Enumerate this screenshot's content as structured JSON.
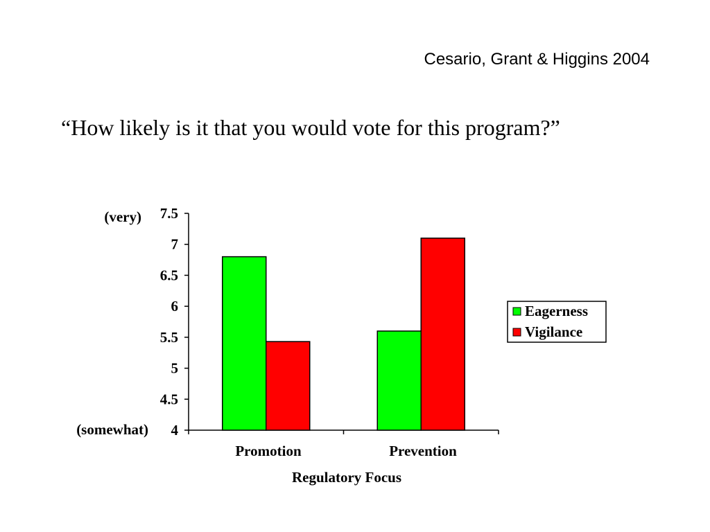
{
  "slide": {
    "citation": "Cesario, Grant & Higgins 2004",
    "question": "“How likely is it that you would vote for this program?”"
  },
  "chart_data": {
    "type": "bar",
    "categories": [
      "Promotion",
      "Prevention"
    ],
    "series": [
      {
        "name": "Eagerness",
        "values": [
          6.8,
          5.6
        ],
        "color": "#00ff00"
      },
      {
        "name": "Vigilance",
        "values": [
          5.43,
          7.1
        ],
        "color": "#ff0000"
      }
    ],
    "xlabel": "Regulatory Focus",
    "ylim": [
      4,
      7.5
    ],
    "yticks": [
      "4",
      "4.5",
      "5",
      "5.5",
      "6",
      "6.5",
      "7",
      "7.5"
    ],
    "y_annotations": {
      "top": "(very)",
      "bottom": "(somewhat)"
    },
    "legend_position": "right",
    "grid": false
  }
}
